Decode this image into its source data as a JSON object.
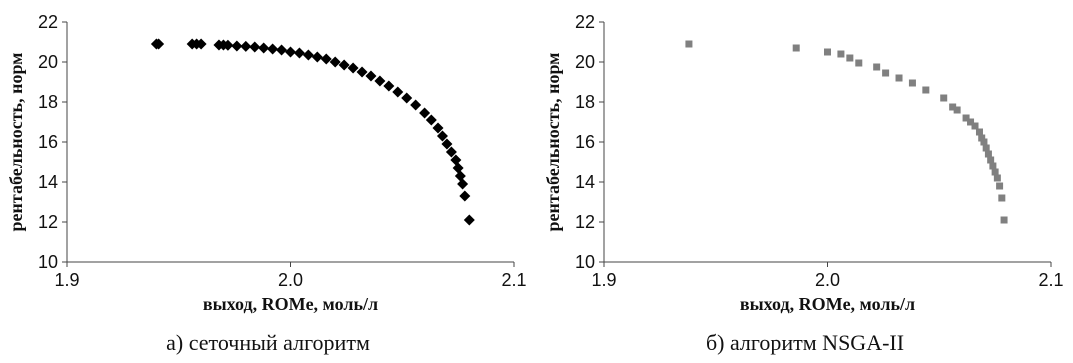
{
  "chart_data": [
    {
      "type": "scatter",
      "caption": "а) сеточный алгоритм",
      "xlabel": "выход, ROMe, моль/л",
      "ylabel": "рентабельность, норм",
      "xlim": [
        1.9,
        2.1
      ],
      "ylim": [
        10,
        22
      ],
      "xticks": [
        "1.9",
        "2.0",
        "2.1"
      ],
      "yticks": [
        "10",
        "12",
        "14",
        "16",
        "18",
        "20",
        "22"
      ],
      "marker": "diamond",
      "color": "#000000",
      "grid": false,
      "points": [
        [
          1.94,
          20.9
        ],
        [
          1.941,
          20.9
        ],
        [
          1.956,
          20.9
        ],
        [
          1.958,
          20.9
        ],
        [
          1.96,
          20.9
        ],
        [
          1.968,
          20.85
        ],
        [
          1.97,
          20.85
        ],
        [
          1.972,
          20.84
        ],
        [
          1.976,
          20.8
        ],
        [
          1.98,
          20.78
        ],
        [
          1.984,
          20.75
        ],
        [
          1.988,
          20.7
        ],
        [
          1.992,
          20.65
        ],
        [
          1.996,
          20.6
        ],
        [
          2.0,
          20.5
        ],
        [
          2.004,
          20.45
        ],
        [
          2.008,
          20.35
        ],
        [
          2.012,
          20.25
        ],
        [
          2.016,
          20.15
        ],
        [
          2.02,
          20.0
        ],
        [
          2.024,
          19.85
        ],
        [
          2.028,
          19.7
        ],
        [
          2.032,
          19.5
        ],
        [
          2.036,
          19.3
        ],
        [
          2.04,
          19.05
        ],
        [
          2.044,
          18.8
        ],
        [
          2.048,
          18.5
        ],
        [
          2.052,
          18.2
        ],
        [
          2.056,
          17.85
        ],
        [
          2.06,
          17.45
        ],
        [
          2.063,
          17.1
        ],
        [
          2.066,
          16.7
        ],
        [
          2.068,
          16.3
        ],
        [
          2.07,
          15.9
        ],
        [
          2.072,
          15.5
        ],
        [
          2.074,
          15.1
        ],
        [
          2.075,
          14.7
        ],
        [
          2.076,
          14.3
        ],
        [
          2.077,
          13.9
        ],
        [
          2.078,
          13.3
        ],
        [
          2.08,
          12.1
        ]
      ]
    },
    {
      "type": "scatter",
      "caption": "б) алгоритм NSGA-II",
      "xlabel": "выход, ROMe, моль/л",
      "ylabel": "рентабельность, норм",
      "xlim": [
        1.9,
        2.1
      ],
      "ylim": [
        10,
        22
      ],
      "xticks": [
        "1.9",
        "2.0",
        "2.1"
      ],
      "yticks": [
        "10",
        "12",
        "14",
        "16",
        "18",
        "20",
        "22"
      ],
      "marker": "square",
      "color": "#808080",
      "grid": false,
      "points": [
        [
          1.938,
          20.9
        ],
        [
          1.986,
          20.7
        ],
        [
          2.0,
          20.5
        ],
        [
          2.006,
          20.4
        ],
        [
          2.01,
          20.2
        ],
        [
          2.014,
          19.95
        ],
        [
          2.022,
          19.75
        ],
        [
          2.026,
          19.45
        ],
        [
          2.032,
          19.2
        ],
        [
          2.038,
          18.95
        ],
        [
          2.044,
          18.6
        ],
        [
          2.052,
          18.2
        ],
        [
          2.056,
          17.75
        ],
        [
          2.058,
          17.6
        ],
        [
          2.062,
          17.2
        ],
        [
          2.064,
          17.0
        ],
        [
          2.066,
          16.8
        ],
        [
          2.068,
          16.5
        ],
        [
          2.069,
          16.2
        ],
        [
          2.07,
          16.0
        ],
        [
          2.071,
          15.7
        ],
        [
          2.072,
          15.4
        ],
        [
          2.073,
          15.1
        ],
        [
          2.074,
          14.8
        ],
        [
          2.075,
          14.5
        ],
        [
          2.076,
          14.2
        ],
        [
          2.077,
          13.8
        ],
        [
          2.078,
          13.2
        ],
        [
          2.079,
          12.1
        ]
      ]
    }
  ]
}
